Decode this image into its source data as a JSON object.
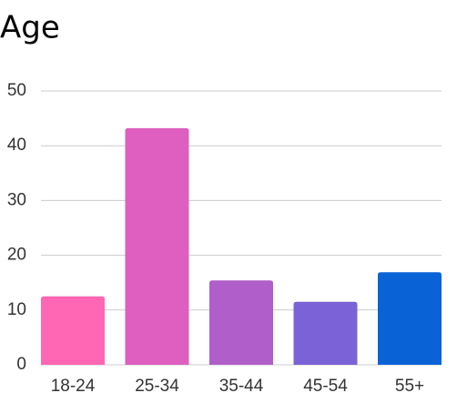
{
  "chart_data": {
    "type": "bar",
    "title": "Age",
    "categories": [
      "18-24",
      "25-34",
      "35-44",
      "45-54",
      "55+"
    ],
    "values": [
      12.5,
      43.2,
      15.4,
      11.5,
      16.9
    ],
    "colors": [
      "#ff66b3",
      "#de5fbf",
      "#b05ec9",
      "#7b62d6",
      "#0a63d6"
    ],
    "ylim": [
      0,
      50
    ],
    "yticks": [
      0,
      10,
      20,
      30,
      40,
      50
    ],
    "grid": true
  }
}
